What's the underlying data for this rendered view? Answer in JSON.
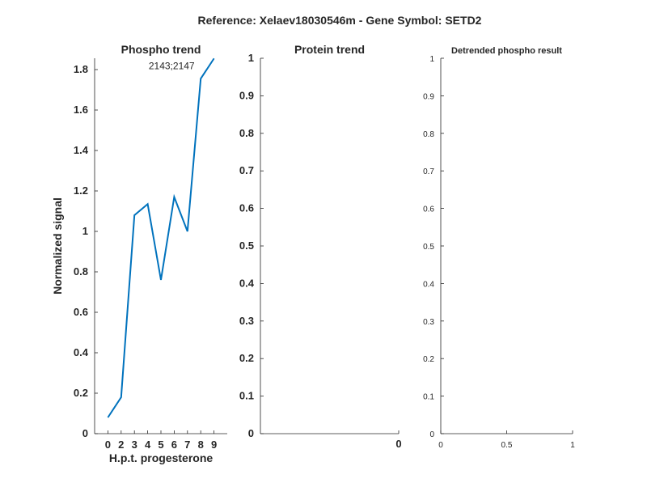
{
  "figure_title": "Reference:  Xelaev18030546m - Gene Symbol:  SETD2",
  "chart_data": [
    {
      "type": "line",
      "title": "Phospho trend",
      "xlabel": "H.p.t. progesterone",
      "ylabel": "Normalized signal",
      "categories": [
        "0",
        "2",
        "3",
        "4",
        "5",
        "6",
        "7",
        "8",
        "9"
      ],
      "series": [
        {
          "name": "2143;2147",
          "values": [
            0.08,
            0.18,
            1.08,
            1.135,
            0.76,
            1.17,
            1.0,
            1.755,
            1.855
          ],
          "color": "#0072BD"
        }
      ],
      "annotation": "2143;2147",
      "yticks": [
        "0",
        "0.2",
        "0.4",
        "0.6",
        "0.8",
        "1",
        "1.2",
        "1.4",
        "1.6",
        "1.8"
      ],
      "ylim": [
        0,
        1.856
      ],
      "xlim": [
        0,
        10
      ]
    },
    {
      "type": "line",
      "title": "Protein trend",
      "xlabel": "",
      "ylabel": "",
      "series": [],
      "xticks": [
        "0"
      ],
      "yticks": [
        "0",
        "0.1",
        "0.2",
        "0.3",
        "0.4",
        "0.5",
        "0.6",
        "0.7",
        "0.8",
        "0.9",
        "1"
      ],
      "ylim": [
        0,
        1
      ]
    },
    {
      "type": "line",
      "title": "Detrended phospho result",
      "xlabel": "",
      "ylabel": "",
      "series": [],
      "xticks": [
        "0",
        "0.5",
        "1"
      ],
      "yticks": [
        "0",
        "0.1",
        "0.2",
        "0.3",
        "0.4",
        "0.5",
        "0.6",
        "0.7",
        "0.8",
        "0.9",
        "1"
      ],
      "xlim": [
        0,
        1
      ],
      "ylim": [
        0,
        1
      ]
    }
  ]
}
